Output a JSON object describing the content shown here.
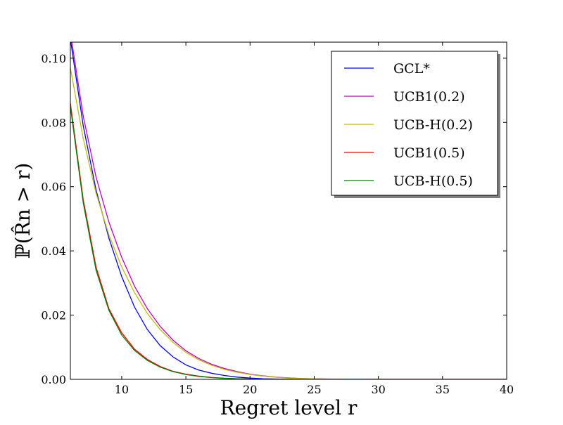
{
  "chart_data": {
    "type": "line",
    "title": "",
    "xlabel": "Regret level r",
    "ylabel": "ℙ(R̂n > r)",
    "xlim": [
      6,
      40
    ],
    "ylim": [
      0,
      0.105
    ],
    "xticks": [
      10,
      15,
      20,
      25,
      30,
      35,
      40
    ],
    "xtick_labels": [
      "10",
      "15",
      "20",
      "25",
      "30",
      "35",
      "40"
    ],
    "yticks": [
      0.0,
      0.02,
      0.04,
      0.06,
      0.08,
      0.1
    ],
    "ytick_labels": [
      "0.00",
      "0.02",
      "0.04",
      "0.06",
      "0.08",
      "0.10"
    ],
    "grid": false,
    "legend_position": "top-right",
    "x": [
      6,
      7,
      8,
      9,
      10,
      11,
      12,
      13,
      14,
      15,
      16,
      17,
      18,
      19,
      20,
      21,
      22,
      23,
      24,
      25,
      26,
      27,
      28,
      29,
      30,
      31,
      32,
      33,
      34,
      35,
      36,
      37,
      38,
      39,
      40
    ],
    "series": [
      {
        "name": "GCL*",
        "color": "#0000ff",
        "values": [
          0.106,
          0.079,
          0.059,
          0.044,
          0.032,
          0.0225,
          0.0155,
          0.0105,
          0.007,
          0.0045,
          0.0029,
          0.0019,
          0.0012,
          0.0007,
          0.0004,
          0.0002,
          0.0001,
          5e-05,
          2e-05,
          1e-05,
          0,
          0,
          0,
          0,
          0,
          0,
          0,
          0,
          0,
          0,
          0,
          0,
          0,
          0,
          0
        ]
      },
      {
        "name": "UCB1(0.2)",
        "color": "#bf00bf",
        "values": [
          0.108,
          0.082,
          0.063,
          0.049,
          0.038,
          0.029,
          0.022,
          0.0165,
          0.0122,
          0.0089,
          0.0065,
          0.0047,
          0.0034,
          0.0024,
          0.0016,
          0.0011,
          0.0007,
          0.00045,
          0.00028,
          0.00017,
          0.0001,
          6e-05,
          3e-05,
          1e-05,
          0,
          0,
          0,
          0,
          0,
          0,
          0,
          0,
          0,
          0,
          0
        ]
      },
      {
        "name": "UCB-H(0.2)",
        "color": "#bfbf00",
        "values": [
          0.097,
          0.075,
          0.058,
          0.045,
          0.035,
          0.027,
          0.0205,
          0.0155,
          0.0115,
          0.0084,
          0.0061,
          0.0044,
          0.0031,
          0.0022,
          0.0015,
          0.001,
          0.00065,
          0.0004,
          0.00025,
          0.00015,
          9e-05,
          5e-05,
          3e-05,
          1e-05,
          0,
          0,
          0,
          0,
          0,
          0,
          0,
          0,
          0,
          0,
          0
        ]
      },
      {
        "name": "UCB1(0.5)",
        "color": "#ff0000",
        "values": [
          0.086,
          0.056,
          0.035,
          0.022,
          0.0145,
          0.0094,
          0.0062,
          0.004,
          0.0025,
          0.0016,
          0.001,
          0.0006,
          0.00035,
          0.0002,
          0.0001,
          5e-05,
          2e-05,
          1e-05,
          0,
          0,
          0,
          0,
          0,
          0,
          0,
          0,
          0,
          0,
          0,
          0,
          0,
          0,
          0,
          0,
          0
        ]
      },
      {
        "name": "UCB-H(0.5)",
        "color": "#008000",
        "values": [
          0.085,
          0.055,
          0.034,
          0.0215,
          0.0138,
          0.009,
          0.0059,
          0.0038,
          0.0024,
          0.0015,
          0.0009,
          0.00055,
          0.00032,
          0.00018,
          0.0001,
          5e-05,
          2e-05,
          1e-05,
          0,
          0,
          0,
          0,
          0,
          0,
          0,
          0,
          0,
          0,
          0,
          0,
          0,
          0,
          0,
          0,
          0
        ]
      }
    ]
  }
}
